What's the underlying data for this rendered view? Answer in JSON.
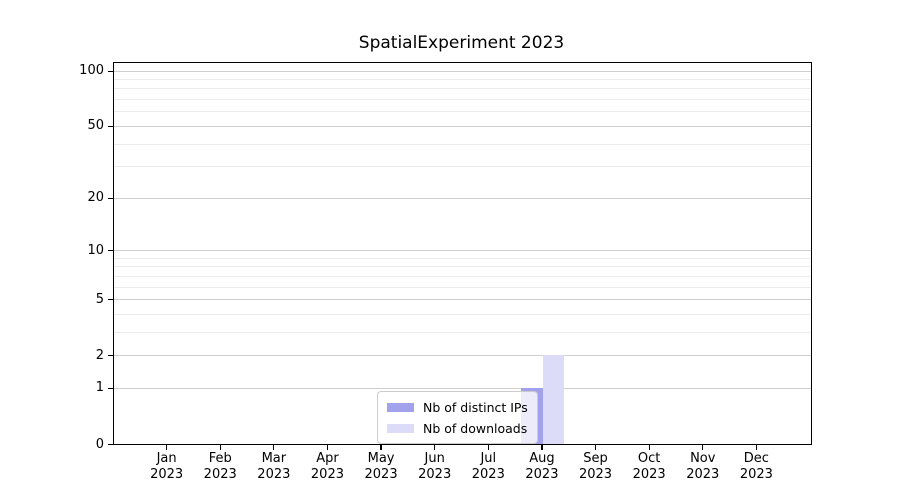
{
  "chart_data": {
    "type": "bar",
    "title": "SpatialExperiment 2023",
    "categories": [
      "Jan 2023",
      "Feb 2023",
      "Mar 2023",
      "Apr 2023",
      "May 2023",
      "Jun 2023",
      "Jul 2023",
      "Aug 2023",
      "Sep 2023",
      "Oct 2023",
      "Nov 2023",
      "Dec 2023"
    ],
    "series": [
      {
        "name": "Nb of distinct IPs",
        "color": "#a2a2ec",
        "values": [
          0,
          0,
          0,
          0,
          0,
          0,
          0,
          1,
          0,
          0,
          0,
          0
        ]
      },
      {
        "name": "Nb of downloads",
        "color": "#dcdcf8",
        "values": [
          0,
          0,
          0,
          0,
          0,
          0,
          0,
          2,
          0,
          0,
          0,
          0
        ]
      }
    ],
    "xlabel": "",
    "ylabel": "",
    "yscale": "log1p",
    "ylim": [
      0,
      110
    ],
    "ytick_values": [
      0,
      1,
      2,
      5,
      10,
      20,
      50,
      100
    ],
    "minor_gridlines": [
      3,
      4,
      6,
      7,
      8,
      9,
      30,
      40,
      60,
      70,
      80,
      90
    ],
    "grid": "horizontal",
    "legend_position": "inside-bottom-center",
    "colors": {
      "major_grid": "#cfcfcf",
      "minor_grid": "#ececec",
      "axis": "#000000",
      "legend_border": "#cccccc"
    }
  }
}
